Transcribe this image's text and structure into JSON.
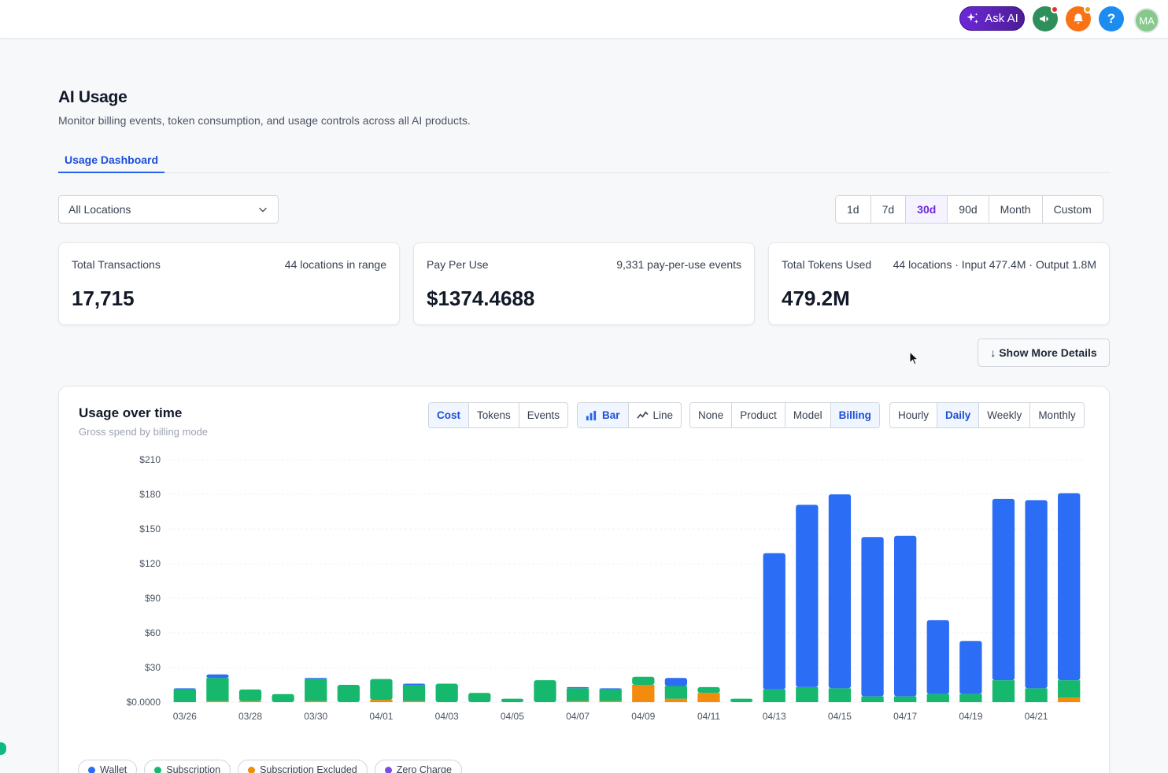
{
  "header": {
    "ask_ai_label": "Ask AI",
    "help_label": "?",
    "avatar_initials": "MA",
    "colors": {
      "announce": "#2f8f5b",
      "bell": "#f97316",
      "help": "#1d8cf0"
    }
  },
  "page": {
    "title": "AI Usage",
    "subtitle": "Monitor billing events, token consumption, and usage controls across all AI products.",
    "tabs": [
      {
        "label": "Usage Dashboard"
      }
    ]
  },
  "filters": {
    "location_value": "All Locations",
    "ranges": [
      "1d",
      "7d",
      "30d",
      "90d",
      "Month",
      "Custom"
    ],
    "active_range": "30d"
  },
  "stats": [
    {
      "label": "Total Transactions",
      "meta": "44 locations in range",
      "value": "17,715"
    },
    {
      "label": "Pay Per Use",
      "meta": "9,331 pay-per-use events",
      "value": "$1374.4688"
    },
    {
      "label": "Total Tokens Used",
      "meta": "44 locations · Input 477.4M · Output 1.8M",
      "value": "479.2M"
    }
  ],
  "show_more_label": "↓ Show More Details",
  "usage_card": {
    "title": "Usage over time",
    "subtitle": "Gross spend by billing mode",
    "metric_buttons": [
      "Cost",
      "Tokens",
      "Events"
    ],
    "chart_type_buttons": [
      "Bar",
      "Line"
    ],
    "group_buttons": [
      "None",
      "Product",
      "Model",
      "Billing"
    ],
    "interval_buttons": [
      "Hourly",
      "Daily",
      "Weekly",
      "Monthly"
    ],
    "active": {
      "metric": "Cost",
      "chart_type": "Bar",
      "group": "Billing",
      "interval": "Daily"
    }
  },
  "chart_data": {
    "type": "bar",
    "stacked": true,
    "title": "Usage over time",
    "subtitle": "Gross spend by billing mode",
    "ylim": [
      0,
      210
    ],
    "yticks": [
      0,
      30,
      60,
      90,
      120,
      150,
      180,
      210
    ],
    "ytick_labels": [
      "$0.0000",
      "$30",
      "$60",
      "$90",
      "$120",
      "$150",
      "$180",
      "$210"
    ],
    "categories": [
      "03/26",
      "03/27",
      "03/28",
      "03/29",
      "03/30",
      "03/31",
      "04/01",
      "04/02",
      "04/03",
      "04/04",
      "04/05",
      "04/06",
      "04/07",
      "04/08",
      "04/09",
      "04/10",
      "04/11",
      "04/12",
      "04/13",
      "04/14",
      "04/15",
      "04/16",
      "04/17",
      "04/18",
      "04/19",
      "04/20",
      "04/21",
      "04/22"
    ],
    "xtick_labels": [
      "03/26",
      "03/28",
      "03/30",
      "04/01",
      "04/03",
      "04/05",
      "04/07",
      "04/09",
      "04/11",
      "04/13",
      "04/15",
      "04/17",
      "04/19",
      "04/21"
    ],
    "series": [
      {
        "name": "Subscription Excluded",
        "color": "#f38b0c",
        "values": [
          0,
          1,
          1,
          0,
          1,
          0,
          2,
          1,
          0,
          0,
          0,
          0,
          1,
          1,
          15,
          3,
          8,
          0,
          0,
          0,
          0,
          0,
          0,
          0,
          0,
          0,
          0,
          4
        ]
      },
      {
        "name": "Subscription",
        "color": "#16b86e",
        "values": [
          11,
          20,
          10,
          7,
          19,
          15,
          18,
          14,
          16,
          8,
          3,
          19,
          11,
          10,
          7,
          11,
          5,
          3,
          11,
          13,
          12,
          5,
          5,
          7,
          7,
          19,
          12,
          15
        ]
      },
      {
        "name": "Wallet",
        "color": "#2c6df5",
        "values": [
          1,
          3,
          0,
          0,
          1,
          0,
          0,
          1,
          0,
          0,
          0,
          0,
          1,
          1,
          0,
          7,
          0,
          0,
          118,
          158,
          168,
          138,
          139,
          64,
          46,
          157,
          163,
          162
        ]
      },
      {
        "name": "Zero Charge",
        "color": "#7c4ddb",
        "values": [
          0,
          0,
          0,
          0,
          0,
          0,
          0,
          0,
          0,
          0,
          0,
          0,
          0,
          0,
          0,
          0,
          0,
          0,
          0,
          0,
          0,
          0,
          0,
          0,
          0,
          0,
          0,
          0
        ]
      }
    ],
    "legend": [
      "Wallet",
      "Subscription",
      "Subscription Excluded",
      "Zero Charge"
    ],
    "legend_colors": [
      "#2c6df5",
      "#16b86e",
      "#f38b0c",
      "#7c4ddb"
    ],
    "grid": true
  }
}
